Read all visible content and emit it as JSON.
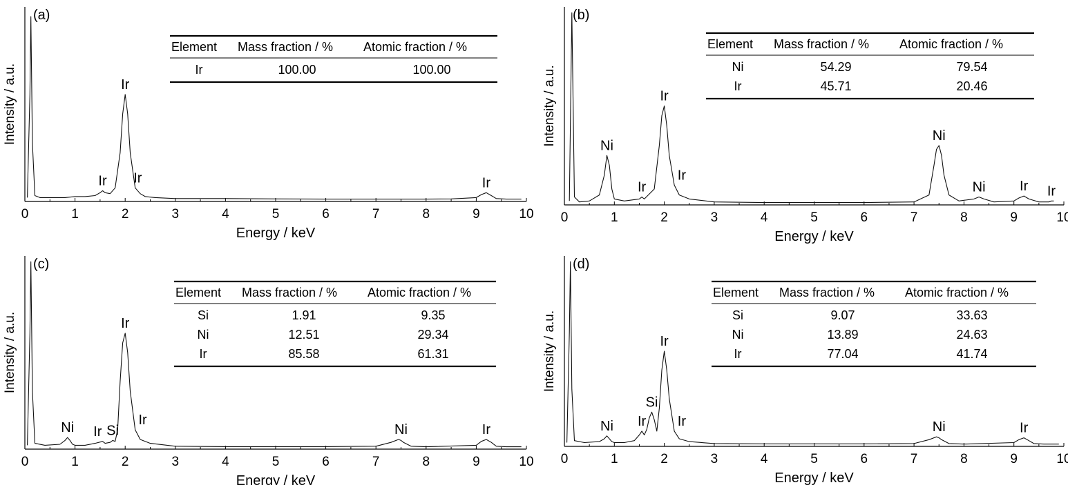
{
  "chart_data": [
    {
      "type": "line",
      "panel_label": "(a)",
      "xlabel": "Energy / keV",
      "ylabel": "Intensity / a.u.",
      "xlim": [
        0,
        10
      ],
      "xticks": [
        "0",
        "1",
        "2",
        "3",
        "4",
        "5",
        "6",
        "7",
        "8",
        "9",
        "10"
      ],
      "series": [
        {
          "x": [
            0.05,
            0.1,
            0.12,
            0.15,
            0.2,
            0.3,
            0.5,
            0.8,
            1.0,
            1.2,
            1.4,
            1.5,
            1.55,
            1.6,
            1.7,
            1.8,
            1.9,
            1.95,
            2.0,
            2.05,
            2.1,
            2.2,
            2.3,
            2.4,
            2.6,
            3.0,
            4.0,
            5.0,
            6.0,
            7.0,
            8.0,
            8.5,
            9.0,
            9.1,
            9.2,
            9.3,
            9.4,
            9.6,
            9.8,
            9.9
          ],
          "y": [
            0.02,
            0.55,
            0.95,
            0.3,
            0.03,
            0.02,
            0.02,
            0.02,
            0.025,
            0.025,
            0.03,
            0.045,
            0.055,
            0.045,
            0.04,
            0.07,
            0.25,
            0.45,
            0.55,
            0.45,
            0.25,
            0.07,
            0.04,
            0.025,
            0.02,
            0.015,
            0.015,
            0.013,
            0.012,
            0.012,
            0.012,
            0.013,
            0.02,
            0.035,
            0.045,
            0.03,
            0.015,
            0.012,
            0.012,
            0.012
          ]
        }
      ],
      "peaks": [
        {
          "label": "Ir",
          "x": 2.0,
          "y": 0.55
        },
        {
          "label": "Ir",
          "x": 1.55,
          "y": 0.055
        },
        {
          "label": "Ir",
          "x": 2.25,
          "y": 0.07
        },
        {
          "label": "Ir",
          "x": 9.2,
          "y": 0.045
        }
      ],
      "table": {
        "headers": [
          "Element",
          "Mass fraction / %",
          "Atomic fraction / %"
        ],
        "rows": [
          [
            "Ir",
            "100.00",
            "100.00"
          ]
        ]
      }
    },
    {
      "type": "line",
      "panel_label": "(b)",
      "xlabel": "Energy / keV",
      "ylabel": "Intensity / a.u.",
      "xlim": [
        0,
        10
      ],
      "xticks": [
        "0",
        "1",
        "2",
        "3",
        "4",
        "5",
        "6",
        "7",
        "8",
        "9",
        "10"
      ],
      "series": [
        {
          "x": [
            0.1,
            0.15,
            0.2,
            0.3,
            0.5,
            0.7,
            0.8,
            0.85,
            0.9,
            0.95,
            1.0,
            1.2,
            1.5,
            1.55,
            1.6,
            1.8,
            1.9,
            1.95,
            2.0,
            2.05,
            2.1,
            2.2,
            2.3,
            2.5,
            3.0,
            4.0,
            5.0,
            6.0,
            7.0,
            7.3,
            7.4,
            7.45,
            7.5,
            7.55,
            7.6,
            7.7,
            7.9,
            8.2,
            8.3,
            8.4,
            8.6,
            9.0,
            9.1,
            9.2,
            9.3,
            9.5,
            9.7,
            9.75,
            9.8
          ],
          "y": [
            0.02,
            0.97,
            0.04,
            0.015,
            0.02,
            0.05,
            0.15,
            0.25,
            0.2,
            0.08,
            0.03,
            0.02,
            0.03,
            0.04,
            0.03,
            0.08,
            0.3,
            0.45,
            0.5,
            0.4,
            0.25,
            0.1,
            0.05,
            0.03,
            0.015,
            0.012,
            0.012,
            0.012,
            0.015,
            0.05,
            0.2,
            0.28,
            0.3,
            0.25,
            0.15,
            0.05,
            0.02,
            0.03,
            0.04,
            0.03,
            0.015,
            0.02,
            0.035,
            0.045,
            0.03,
            0.015,
            0.015,
            0.02,
            0.02
          ]
        }
      ],
      "peaks": [
        {
          "label": "Ni",
          "x": 0.85,
          "y": 0.25
        },
        {
          "label": "Ir",
          "x": 1.55,
          "y": 0.04
        },
        {
          "label": "Ir",
          "x": 2.0,
          "y": 0.5
        },
        {
          "label": "Ir",
          "x": 2.35,
          "y": 0.1
        },
        {
          "label": "Ni",
          "x": 7.5,
          "y": 0.3
        },
        {
          "label": "Ni",
          "x": 8.3,
          "y": 0.04
        },
        {
          "label": "Ir",
          "x": 9.2,
          "y": 0.045
        },
        {
          "label": "Ir",
          "x": 9.75,
          "y": 0.02
        }
      ],
      "table": {
        "headers": [
          "Element",
          "Mass fraction / %",
          "Atomic fraction / %"
        ],
        "rows": [
          [
            "Ni",
            "54.29",
            "79.54"
          ],
          [
            "Ir",
            "45.71",
            "20.46"
          ]
        ]
      }
    },
    {
      "type": "line",
      "panel_label": "(c)",
      "xlabel": "Energy / keV",
      "ylabel": "Intensity / a.u.",
      "xlim": [
        0,
        10
      ],
      "xticks": [
        "0",
        "1",
        "2",
        "3",
        "4",
        "5",
        "6",
        "7",
        "8",
        "9",
        "10"
      ],
      "series": [
        {
          "x": [
            0.05,
            0.1,
            0.12,
            0.15,
            0.2,
            0.4,
            0.7,
            0.8,
            0.85,
            0.9,
            0.95,
            1.0,
            1.2,
            1.4,
            1.55,
            1.6,
            1.7,
            1.75,
            1.8,
            1.85,
            1.9,
            1.95,
            2.0,
            2.05,
            2.1,
            2.2,
            2.3,
            2.5,
            3.0,
            4.0,
            5.0,
            6.0,
            7.0,
            7.3,
            7.45,
            7.5,
            7.55,
            7.7,
            8.0,
            9.0,
            9.1,
            9.2,
            9.3,
            9.4,
            9.6,
            9.8,
            9.9
          ],
          "y": [
            0.02,
            0.6,
            0.97,
            0.3,
            0.03,
            0.02,
            0.025,
            0.045,
            0.06,
            0.045,
            0.025,
            0.02,
            0.02,
            0.03,
            0.04,
            0.03,
            0.035,
            0.045,
            0.04,
            0.1,
            0.35,
            0.55,
            0.6,
            0.5,
            0.3,
            0.1,
            0.05,
            0.03,
            0.015,
            0.013,
            0.013,
            0.013,
            0.015,
            0.035,
            0.05,
            0.045,
            0.035,
            0.015,
            0.012,
            0.02,
            0.04,
            0.05,
            0.035,
            0.015,
            0.012,
            0.012,
            0.012
          ]
        }
      ],
      "peaks": [
        {
          "label": "Ni",
          "x": 0.85,
          "y": 0.06
        },
        {
          "label": "Ir",
          "x": 1.45,
          "y": 0.04
        },
        {
          "label": "Si",
          "x": 1.75,
          "y": 0.045
        },
        {
          "label": "Ir",
          "x": 2.0,
          "y": 0.6
        },
        {
          "label": "Ir",
          "x": 2.35,
          "y": 0.1
        },
        {
          "label": "Ni",
          "x": 7.5,
          "y": 0.05
        },
        {
          "label": "Ir",
          "x": 9.2,
          "y": 0.05
        }
      ],
      "table": {
        "headers": [
          "Element",
          "Mass fraction / %",
          "Atomic fraction / %"
        ],
        "rows": [
          [
            "Si",
            "1.91",
            "9.35"
          ],
          [
            "Ni",
            "12.51",
            "29.34"
          ],
          [
            "Ir",
            "85.58",
            "61.31"
          ]
        ]
      }
    },
    {
      "type": "line",
      "panel_label": "(d)",
      "xlabel": "Energy / keV",
      "ylabel": "Intensity / a.u.",
      "xlim": [
        0,
        10
      ],
      "xticks": [
        "0",
        "1",
        "2",
        "3",
        "4",
        "5",
        "6",
        "7",
        "8",
        "9",
        "10"
      ],
      "series": [
        {
          "x": [
            0.05,
            0.1,
            0.12,
            0.15,
            0.2,
            0.4,
            0.7,
            0.8,
            0.85,
            0.9,
            0.95,
            1.0,
            1.2,
            1.4,
            1.5,
            1.55,
            1.6,
            1.65,
            1.7,
            1.75,
            1.8,
            1.85,
            1.9,
            1.95,
            2.0,
            2.05,
            2.1,
            2.2,
            2.3,
            2.5,
            3.0,
            4.0,
            5.0,
            6.0,
            7.0,
            7.3,
            7.45,
            7.5,
            7.55,
            7.7,
            8.0,
            9.0,
            9.1,
            9.2,
            9.3,
            9.4,
            9.6,
            9.8,
            9.9
          ],
          "y": [
            0.02,
            0.6,
            0.97,
            0.3,
            0.03,
            0.02,
            0.025,
            0.04,
            0.055,
            0.04,
            0.025,
            0.02,
            0.02,
            0.03,
            0.06,
            0.08,
            0.06,
            0.09,
            0.15,
            0.18,
            0.14,
            0.08,
            0.2,
            0.4,
            0.5,
            0.4,
            0.25,
            0.08,
            0.04,
            0.025,
            0.015,
            0.013,
            0.013,
            0.013,
            0.015,
            0.035,
            0.05,
            0.045,
            0.035,
            0.015,
            0.012,
            0.02,
            0.035,
            0.045,
            0.03,
            0.015,
            0.012,
            0.012,
            0.012
          ]
        }
      ],
      "peaks": [
        {
          "label": "Ni",
          "x": 0.85,
          "y": 0.055
        },
        {
          "label": "Ir",
          "x": 1.55,
          "y": 0.08
        },
        {
          "label": "Si",
          "x": 1.75,
          "y": 0.18
        },
        {
          "label": "Ir",
          "x": 2.0,
          "y": 0.5
        },
        {
          "label": "Ir",
          "x": 2.35,
          "y": 0.08
        },
        {
          "label": "Ni",
          "x": 7.5,
          "y": 0.05
        },
        {
          "label": "Ir",
          "x": 9.2,
          "y": 0.045
        }
      ],
      "table": {
        "headers": [
          "Element",
          "Mass fraction / %",
          "Atomic fraction / %"
        ],
        "rows": [
          [
            "Si",
            "9.07",
            "33.63"
          ],
          [
            "Ni",
            "13.89",
            "24.63"
          ],
          [
            "Ir",
            "77.04",
            "41.74"
          ]
        ]
      }
    }
  ]
}
